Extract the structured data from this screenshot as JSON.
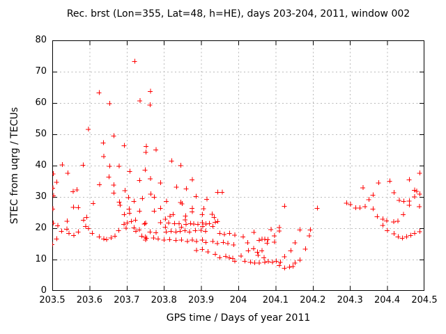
{
  "title": "Rec. brst (Lon=355, Lat=48, h=HE), days 203-204, 2011, window 002",
  "colors": {
    "marker": "#ff0000",
    "grid": "#b9b9b9",
    "frame": "#000000",
    "background": "#ffffff",
    "text": "#000000"
  },
  "chart_data": {
    "type": "scatter",
    "title": "Rec. brst (Lon=355, Lat=48, h=HE), days 203-204, 2011, window 002",
    "xlabel": "GPS time / Days of year 2011",
    "ylabel": "STEC from uqrg / TECUs",
    "xlim": [
      203.5,
      204.5
    ],
    "ylim": [
      0,
      80
    ],
    "xticks": [
      203.5,
      203.6,
      203.7,
      203.8,
      203.9,
      204.0,
      204.1,
      204.2,
      204.3,
      204.4,
      204.5
    ],
    "xtick_labels": [
      "203.5",
      "203.6",
      "203.7",
      "203.8",
      "203.9",
      "204",
      "204.1",
      "204.2",
      "204.3",
      "204.4",
      "204.5"
    ],
    "yticks": [
      0,
      10,
      20,
      30,
      40,
      50,
      60,
      70,
      80
    ],
    "ytick_labels": [
      "0",
      "10",
      "20",
      "30",
      "40",
      "50",
      "60",
      "70",
      "80"
    ],
    "grid": true,
    "legend": "none",
    "marker": "plus",
    "marker_size": 7,
    "series": [
      {
        "name": "STEC",
        "points": [
          [
            203.502,
            37.4
          ],
          [
            203.511,
            34.8
          ],
          [
            203.501,
            32.9
          ],
          [
            203.503,
            30.5
          ],
          [
            203.501,
            26.2
          ],
          [
            203.514,
            20.9
          ],
          [
            203.502,
            21.7
          ],
          [
            203.499,
            14.9
          ],
          [
            203.511,
            16.7
          ],
          [
            203.526,
            40.3
          ],
          [
            203.541,
            37.7
          ],
          [
            203.539,
            22.3
          ],
          [
            203.524,
            19.1
          ],
          [
            203.538,
            19.8
          ],
          [
            203.544,
            18.4
          ],
          [
            203.555,
            31.8
          ],
          [
            203.556,
            26.8
          ],
          [
            203.557,
            17.8
          ],
          [
            203.566,
            32.3
          ],
          [
            203.569,
            26.7
          ],
          [
            203.569,
            18.9
          ],
          [
            203.582,
            40.2
          ],
          [
            203.583,
            22.7
          ],
          [
            203.589,
            20.7
          ],
          [
            203.592,
            23.6
          ],
          [
            203.596,
            51.7
          ],
          [
            203.596,
            20.0
          ],
          [
            203.607,
            18.5
          ],
          [
            203.61,
            28.0
          ],
          [
            203.625,
            63.3
          ],
          [
            203.626,
            34.0
          ],
          [
            203.625,
            17.3
          ],
          [
            203.637,
            47.3
          ],
          [
            203.638,
            43.0
          ],
          [
            203.638,
            16.7
          ],
          [
            203.645,
            16.5
          ],
          [
            203.652,
            36.4
          ],
          [
            203.654,
            59.9
          ],
          [
            203.654,
            39.9
          ],
          [
            203.657,
            17.0
          ],
          [
            203.665,
            49.6
          ],
          [
            203.665,
            33.9
          ],
          [
            203.665,
            31.3
          ],
          [
            203.668,
            17.6
          ],
          [
            203.679,
            39.9
          ],
          [
            203.68,
            28.4
          ],
          [
            203.682,
            27.5
          ],
          [
            203.678,
            19.3
          ],
          [
            203.692,
            21.3
          ],
          [
            203.693,
            46.4
          ],
          [
            203.693,
            24.4
          ],
          [
            203.695,
            32.1
          ],
          [
            203.698,
            20.1
          ],
          [
            203.7,
            21.8
          ],
          [
            203.704,
            29.9
          ],
          [
            203.706,
            26.2
          ],
          [
            203.707,
            24.9
          ],
          [
            203.708,
            38.2
          ],
          [
            203.712,
            22.2
          ],
          [
            203.719,
            28.7
          ],
          [
            203.719,
            20.2
          ],
          [
            203.721,
            73.3
          ],
          [
            203.723,
            22.7
          ],
          [
            203.724,
            19.1
          ],
          [
            203.733,
            19.6
          ],
          [
            203.734,
            35.3
          ],
          [
            203.734,
            25.6
          ],
          [
            203.735,
            60.8
          ],
          [
            203.74,
            17.6
          ],
          [
            203.742,
            29.6
          ],
          [
            203.747,
            21.5
          ],
          [
            203.749,
            38.7
          ],
          [
            203.749,
            17.2
          ],
          [
            203.75,
            21.7
          ],
          [
            203.75,
            16.3
          ],
          [
            203.751,
            44.3
          ],
          [
            203.752,
            46.2
          ],
          [
            203.762,
            59.4
          ],
          [
            203.763,
            63.8
          ],
          [
            203.763,
            35.9
          ],
          [
            203.762,
            18.9
          ],
          [
            203.753,
            16.9
          ],
          [
            203.764,
            31.0
          ],
          [
            203.773,
            30.0
          ],
          [
            203.773,
            25.6
          ],
          [
            203.772,
            17.0
          ],
          [
            203.778,
            45.1
          ],
          [
            203.778,
            18.7
          ],
          [
            203.784,
            16.7
          ],
          [
            203.79,
            34.6
          ],
          [
            203.79,
            26.5
          ],
          [
            203.79,
            21.9
          ],
          [
            203.8,
            16.3
          ],
          [
            203.803,
            23.0
          ],
          [
            203.803,
            20.4
          ],
          [
            203.805,
            18.9
          ],
          [
            203.806,
            28.7
          ],
          [
            203.812,
            21.8
          ],
          [
            203.815,
            16.4
          ],
          [
            203.816,
            23.9
          ],
          [
            203.818,
            19.1
          ],
          [
            203.82,
            41.6
          ],
          [
            203.824,
            24.4
          ],
          [
            203.828,
            21.6
          ],
          [
            203.831,
            18.9
          ],
          [
            203.831,
            16.2
          ],
          [
            203.833,
            33.2
          ],
          [
            203.84,
            21.6
          ],
          [
            203.843,
            19.1
          ],
          [
            203.845,
            40.1
          ],
          [
            203.845,
            28.3
          ],
          [
            203.848,
            27.9
          ],
          [
            203.846,
            20.4
          ],
          [
            203.846,
            16.3
          ],
          [
            203.856,
            19.3
          ],
          [
            203.857,
            22.8
          ],
          [
            203.858,
            24.0
          ],
          [
            203.859,
            21.3
          ],
          [
            203.86,
            32.7
          ],
          [
            203.862,
            15.9
          ],
          [
            203.868,
            18.9
          ],
          [
            203.871,
            21.6
          ],
          [
            203.879,
            21.5
          ],
          [
            203.875,
            35.6
          ],
          [
            203.875,
            26.4
          ],
          [
            203.875,
            25.3
          ],
          [
            203.875,
            16.3
          ],
          [
            203.884,
            19.3
          ],
          [
            203.886,
            30.2
          ],
          [
            203.887,
            15.9
          ],
          [
            203.887,
            13.0
          ],
          [
            203.89,
            21.3
          ],
          [
            203.899,
            19.4
          ],
          [
            203.903,
            24.4
          ],
          [
            203.903,
            21.9
          ],
          [
            203.903,
            16.3
          ],
          [
            203.903,
            13.3
          ],
          [
            203.904,
            20.7
          ],
          [
            203.906,
            26.3
          ],
          [
            203.911,
            19.1
          ],
          [
            203.912,
            21.5
          ],
          [
            203.912,
            15.6
          ],
          [
            203.915,
            29.3
          ],
          [
            203.918,
            12.6
          ],
          [
            203.921,
            21.6
          ],
          [
            203.929,
            24.6
          ],
          [
            203.931,
            20.7
          ],
          [
            203.931,
            15.9
          ],
          [
            203.934,
            23.6
          ],
          [
            203.937,
            22.0
          ],
          [
            203.937,
            11.8
          ],
          [
            203.943,
            15.2
          ],
          [
            203.944,
            31.6
          ],
          [
            203.944,
            22.2
          ],
          [
            203.949,
            18.5
          ],
          [
            203.949,
            10.7
          ],
          [
            203.956,
            31.6
          ],
          [
            203.959,
            15.6
          ],
          [
            203.962,
            18.1
          ],
          [
            203.965,
            11.1
          ],
          [
            203.971,
            15.2
          ],
          [
            203.975,
            10.7
          ],
          [
            203.976,
            18.5
          ],
          [
            203.984,
            10.4
          ],
          [
            203.987,
            14.8
          ],
          [
            203.99,
            17.9
          ],
          [
            203.99,
            9.6
          ],
          [
            204.007,
            11.2
          ],
          [
            204.012,
            17.3
          ],
          [
            204.017,
            9.6
          ],
          [
            204.024,
            15.5
          ],
          [
            204.026,
            12.9
          ],
          [
            204.032,
            9.2
          ],
          [
            204.04,
            13.6
          ],
          [
            204.041,
            18.8
          ],
          [
            204.043,
            9.0
          ],
          [
            204.051,
            12.5
          ],
          [
            204.052,
            11.4
          ],
          [
            204.055,
            16.2
          ],
          [
            204.055,
            9.0
          ],
          [
            204.063,
            16.6
          ],
          [
            204.063,
            12.9
          ],
          [
            204.068,
            10.7
          ],
          [
            204.07,
            16.6
          ],
          [
            204.07,
            9.2
          ],
          [
            204.077,
            15.3
          ],
          [
            204.079,
            16.4
          ],
          [
            204.08,
            9.4
          ],
          [
            204.087,
            19.7
          ],
          [
            204.091,
            9.2
          ],
          [
            204.096,
            17.7
          ],
          [
            204.096,
            15.7
          ],
          [
            204.101,
            9.6
          ],
          [
            204.11,
            20.3
          ],
          [
            204.11,
            19.2
          ],
          [
            204.11,
            8.2
          ],
          [
            204.112,
            9.2
          ],
          [
            204.124,
            27.1
          ],
          [
            204.124,
            11.0
          ],
          [
            204.124,
            7.3
          ],
          [
            204.137,
            7.7
          ],
          [
            204.14,
            12.9
          ],
          [
            204.146,
            7.9
          ],
          [
            204.152,
            15.5
          ],
          [
            204.152,
            9.0
          ],
          [
            204.165,
            19.6
          ],
          [
            204.165,
            9.9
          ],
          [
            204.18,
            13.4
          ],
          [
            204.19,
            17.7
          ],
          [
            204.193,
            19.6
          ],
          [
            204.212,
            26.4
          ],
          [
            204.29,
            28.1
          ],
          [
            204.301,
            27.7
          ],
          [
            204.315,
            26.6
          ],
          [
            204.326,
            26.6
          ],
          [
            204.334,
            33.0
          ],
          [
            204.34,
            27.0
          ],
          [
            204.35,
            29.2
          ],
          [
            204.361,
            30.7
          ],
          [
            204.361,
            26.2
          ],
          [
            204.373,
            23.8
          ],
          [
            204.376,
            34.6
          ],
          [
            204.388,
            23.0
          ],
          [
            204.388,
            21.0
          ],
          [
            204.398,
            22.5
          ],
          [
            204.4,
            19.3
          ],
          [
            204.406,
            35.1
          ],
          [
            204.417,
            22.1
          ],
          [
            204.418,
            31.4
          ],
          [
            204.418,
            18.3
          ],
          [
            204.428,
            22.3
          ],
          [
            204.429,
            17.3
          ],
          [
            204.432,
            29.0
          ],
          [
            204.44,
            16.9
          ],
          [
            204.443,
            24.4
          ],
          [
            204.444,
            28.7
          ],
          [
            204.451,
            17.3
          ],
          [
            204.459,
            35.6
          ],
          [
            204.459,
            28.8
          ],
          [
            204.459,
            27.5
          ],
          [
            204.463,
            17.8
          ],
          [
            204.473,
            32.2
          ],
          [
            204.473,
            30.1
          ],
          [
            204.478,
            31.9
          ],
          [
            204.473,
            18.4
          ],
          [
            204.486,
            27.0
          ],
          [
            204.487,
            37.7
          ],
          [
            204.487,
            31.0
          ],
          [
            204.487,
            19.0
          ]
        ]
      }
    ]
  }
}
